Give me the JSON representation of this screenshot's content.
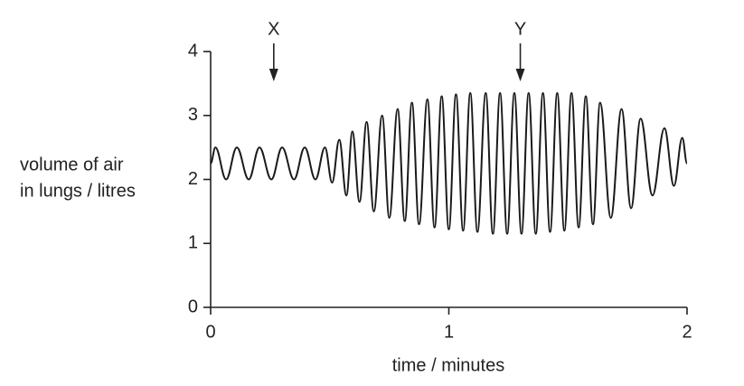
{
  "chart_data": {
    "type": "line",
    "xlabel": "time / minutes",
    "ylabel": [
      "volume of air",
      "in lungs / litres"
    ],
    "xlim": [
      0,
      2
    ],
    "ylim": [
      0,
      4
    ],
    "xticks": [
      0,
      1,
      2
    ],
    "yticks": [
      0,
      1,
      2,
      3,
      4
    ],
    "grid": false,
    "color": "#1a1a1a",
    "annotations": [
      {
        "text": "X",
        "x": 0.265
      },
      {
        "text": "Y",
        "x": 1.3
      }
    ],
    "x": [
      0,
      0.02,
      0.065,
      0.11,
      0.16,
      0.205,
      0.255,
      0.3,
      0.35,
      0.395,
      0.44,
      0.48,
      0.51,
      0.54,
      0.57,
      0.595,
      0.625,
      0.655,
      0.685,
      0.72,
      0.75,
      0.785,
      0.815,
      0.845,
      0.875,
      0.91,
      0.94,
      0.97,
      1.0,
      1.03,
      1.06,
      1.09,
      1.12,
      1.155,
      1.185,
      1.215,
      1.245,
      1.275,
      1.305,
      1.335,
      1.365,
      1.395,
      1.425,
      1.455,
      1.485,
      1.515,
      1.545,
      1.575,
      1.605,
      1.635,
      1.68,
      1.725,
      1.765,
      1.805,
      1.855,
      1.905,
      1.945,
      1.98,
      2.0
    ],
    "values": [
      2.25,
      2.5,
      2.0,
      2.5,
      2.0,
      2.5,
      2.0,
      2.5,
      2.0,
      2.5,
      2.0,
      2.5,
      1.95,
      2.62,
      1.75,
      2.75,
      1.65,
      2.9,
      1.5,
      3.0,
      1.4,
      3.1,
      1.35,
      3.2,
      1.3,
      3.25,
      1.25,
      3.3,
      1.22,
      3.33,
      1.2,
      3.35,
      1.18,
      3.35,
      1.15,
      3.35,
      1.15,
      3.35,
      1.15,
      3.35,
      1.15,
      3.35,
      1.18,
      3.35,
      1.2,
      3.35,
      1.25,
      3.3,
      1.3,
      3.2,
      1.4,
      3.1,
      1.55,
      2.95,
      1.75,
      2.8,
      1.9,
      2.65,
      2.25
    ]
  }
}
